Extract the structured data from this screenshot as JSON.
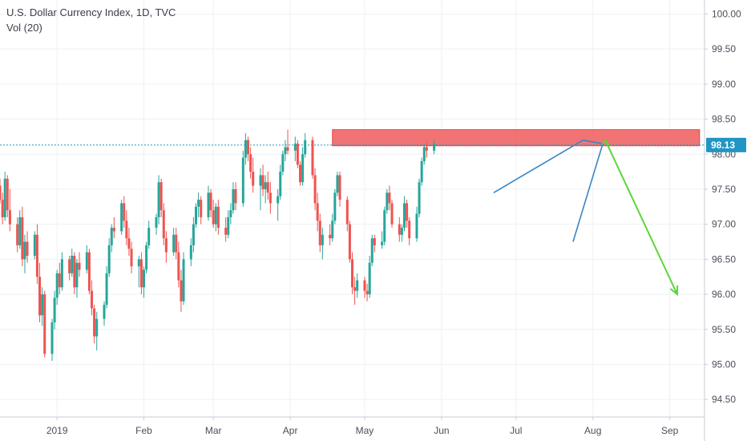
{
  "chart_data": {
    "type": "candlestick",
    "title": "U.S. Dollar Currency Index, 1D, TVC",
    "indicator": "Vol (20)",
    "last_price": "98.13",
    "ylim": [
      94.25,
      100.2
    ],
    "y_ticks": [
      "100.00",
      "99.50",
      "99.00",
      "98.50",
      "98.00",
      "97.50",
      "97.00",
      "96.50",
      "96.00",
      "95.50",
      "95.00",
      "94.50"
    ],
    "y_tick_values": [
      100.0,
      99.5,
      99.0,
      98.5,
      98.0,
      97.5,
      97.0,
      96.5,
      96.0,
      95.5,
      95.0,
      94.5
    ],
    "x_ticks": [
      "2019",
      "Feb",
      "Mar",
      "Apr",
      "May",
      "Jun",
      "Jul",
      "Aug",
      "Sep"
    ],
    "x_tick_days": [
      31,
      66,
      94,
      125,
      155,
      186,
      216,
      247,
      278
    ],
    "x_range_days": [
      8,
      292
    ],
    "resistance_zone": {
      "from_day": 142,
      "to_day": 290,
      "low": 98.12,
      "high": 98.35
    },
    "price_line": 98.13,
    "colors": {
      "up": "#26a69a",
      "down": "#ef5350",
      "zone": "#f05b5b",
      "price_label": "#2196c4",
      "trend": "#3a85c4",
      "projection": "#5cd63b",
      "grid": "#eef0f3"
    },
    "candles": [
      [
        97.55,
        97.65,
        97.3,
        97.35
      ],
      [
        97.35,
        97.45,
        97.0,
        97.1
      ],
      [
        97.1,
        97.75,
        97.05,
        97.65
      ],
      [
        97.65,
        97.7,
        97.1,
        97.2
      ],
      [
        97.2,
        97.5,
        96.9,
        97.0
      ],
      [
        97.0,
        97.1,
        96.6,
        96.7
      ],
      [
        96.7,
        97.2,
        96.65,
        97.1
      ],
      [
        97.1,
        97.25,
        96.4,
        96.5
      ],
      [
        96.5,
        96.85,
        96.3,
        96.75
      ],
      [
        96.75,
        96.9,
        96.45,
        96.55
      ],
      [
        96.55,
        96.9,
        96.5,
        96.85
      ],
      [
        96.85,
        97.0,
        96.15,
        96.25
      ],
      [
        96.25,
        96.45,
        95.6,
        95.7
      ],
      [
        95.7,
        96.1,
        95.55,
        96.0
      ],
      [
        96.0,
        96.05,
        95.1,
        95.15
      ],
      [
        95.15,
        95.65,
        95.05,
        95.6
      ],
      [
        95.6,
        96.05,
        95.5,
        95.95
      ],
      [
        95.95,
        96.35,
        95.85,
        96.3
      ],
      [
        96.3,
        96.45,
        96.0,
        96.1
      ],
      [
        96.1,
        96.6,
        96.05,
        96.5
      ],
      [
        96.5,
        96.55,
        96.2,
        96.3
      ],
      [
        96.3,
        96.65,
        96.25,
        96.55
      ],
      [
        96.55,
        96.6,
        96.0,
        96.1
      ],
      [
        96.1,
        96.5,
        95.95,
        96.45
      ],
      [
        96.45,
        96.6,
        96.25,
        96.35
      ],
      [
        96.35,
        96.7,
        96.3,
        96.6
      ],
      [
        96.6,
        96.65,
        96.0,
        96.05
      ],
      [
        96.05,
        96.2,
        95.7,
        95.8
      ],
      [
        95.8,
        95.85,
        95.3,
        95.4
      ],
      [
        95.4,
        95.75,
        95.2,
        95.65
      ],
      [
        95.65,
        95.9,
        95.55,
        95.85
      ],
      [
        95.85,
        96.4,
        95.8,
        96.3
      ],
      [
        96.3,
        96.8,
        96.25,
        96.7
      ],
      [
        96.7,
        97.0,
        96.6,
        96.95
      ],
      [
        96.95,
        97.1,
        96.8,
        96.9
      ],
      [
        96.9,
        97.35,
        96.85,
        97.3
      ],
      [
        97.3,
        97.4,
        96.95,
        97.05
      ],
      [
        97.05,
        97.2,
        96.7,
        96.8
      ],
      [
        96.8,
        96.95,
        96.55,
        96.65
      ],
      [
        96.65,
        96.75,
        96.3,
        96.4
      ],
      [
        96.4,
        96.55,
        96.1,
        96.5
      ],
      [
        96.5,
        96.6,
        96.0,
        96.1
      ],
      [
        96.1,
        96.4,
        95.95,
        96.35
      ],
      [
        96.35,
        96.75,
        96.3,
        96.7
      ],
      [
        96.7,
        97.05,
        96.65,
        96.95
      ],
      [
        96.95,
        97.15,
        96.85,
        97.1
      ],
      [
        97.1,
        97.7,
        97.0,
        97.6
      ],
      [
        97.6,
        97.65,
        97.1,
        97.2
      ],
      [
        97.2,
        97.3,
        96.7,
        96.8
      ],
      [
        96.8,
        96.9,
        96.45,
        96.6
      ],
      [
        96.6,
        96.95,
        96.55,
        96.85
      ],
      [
        96.85,
        96.95,
        96.5,
        96.6
      ],
      [
        96.6,
        96.75,
        96.1,
        96.2
      ],
      [
        96.2,
        96.35,
        95.75,
        95.9
      ],
      [
        95.9,
        96.6,
        95.85,
        96.5
      ],
      [
        96.5,
        96.8,
        96.4,
        96.7
      ],
      [
        96.7,
        97.1,
        96.6,
        97.0
      ],
      [
        97.0,
        97.3,
        96.95,
        97.25
      ],
      [
        97.25,
        97.45,
        97.1,
        97.35
      ],
      [
        97.35,
        97.4,
        97.0,
        97.1
      ],
      [
        97.1,
        97.55,
        97.05,
        97.45
      ],
      [
        97.45,
        97.5,
        97.1,
        97.2
      ],
      [
        97.2,
        97.35,
        96.95,
        97.0
      ],
      [
        97.0,
        97.3,
        96.9,
        97.25
      ],
      [
        97.25,
        97.35,
        96.85,
        96.95
      ],
      [
        96.95,
        97.1,
        96.75,
        96.85
      ],
      [
        96.85,
        97.2,
        96.8,
        97.1
      ],
      [
        97.1,
        97.3,
        97.0,
        97.2
      ],
      [
        97.2,
        97.6,
        97.15,
        97.5
      ],
      [
        97.5,
        97.6,
        97.2,
        97.3
      ],
      [
        97.3,
        98.05,
        97.25,
        97.95
      ],
      [
        97.95,
        98.3,
        97.85,
        98.2
      ],
      [
        98.2,
        98.25,
        97.9,
        98.0
      ],
      [
        98.0,
        98.1,
        97.65,
        97.75
      ],
      [
        97.75,
        97.95,
        97.45,
        97.55
      ],
      [
        97.55,
        97.8,
        97.2,
        97.7
      ],
      [
        97.7,
        97.85,
        97.4,
        97.5
      ],
      [
        97.5,
        97.7,
        97.3,
        97.6
      ],
      [
        97.6,
        97.75,
        97.35,
        97.45
      ],
      [
        97.45,
        97.6,
        97.15,
        97.3
      ],
      [
        97.3,
        97.5,
        97.05,
        97.4
      ],
      [
        97.4,
        97.85,
        97.35,
        97.75
      ],
      [
        97.75,
        98.05,
        97.7,
        98.0
      ],
      [
        98.0,
        98.2,
        97.9,
        98.1
      ],
      [
        98.1,
        98.35,
        98.0,
        98.05
      ],
      [
        98.05,
        98.25,
        97.9,
        98.15
      ],
      [
        98.15,
        98.2,
        97.8,
        97.85
      ],
      [
        97.85,
        97.9,
        97.55,
        97.6
      ],
      [
        97.6,
        98.1,
        97.55,
        98.0
      ],
      [
        98.0,
        98.3,
        97.95,
        98.2
      ],
      [
        98.2,
        98.25,
        97.65,
        97.7
      ],
      [
        97.7,
        97.8,
        97.2,
        97.3
      ],
      [
        97.3,
        97.45,
        96.9,
        97.05
      ],
      [
        97.05,
        97.15,
        96.6,
        96.7
      ],
      [
        96.7,
        96.95,
        96.5,
        96.85
      ],
      [
        96.85,
        97.0,
        96.7,
        96.8
      ],
      [
        96.8,
        97.15,
        96.75,
        97.05
      ],
      [
        97.05,
        97.5,
        97.0,
        97.45
      ],
      [
        97.45,
        97.75,
        97.4,
        97.7
      ],
      [
        97.7,
        97.75,
        97.25,
        97.35
      ],
      [
        97.35,
        97.4,
        96.9,
        97.0
      ],
      [
        97.0,
        97.05,
        96.45,
        96.5
      ],
      [
        96.5,
        96.6,
        96.0,
        96.1
      ],
      [
        96.1,
        96.25,
        95.85,
        96.05
      ],
      [
        96.05,
        96.3,
        95.95,
        96.2
      ],
      [
        96.2,
        96.25,
        95.95,
        96.05
      ],
      [
        96.05,
        96.15,
        95.9,
        96.0
      ],
      [
        96.0,
        96.55,
        95.95,
        96.45
      ],
      [
        96.45,
        96.85,
        96.4,
        96.8
      ],
      [
        96.8,
        96.85,
        96.6,
        96.7
      ],
      [
        96.7,
        96.9,
        96.65,
        96.75
      ],
      [
        96.75,
        97.25,
        96.7,
        97.2
      ],
      [
        97.2,
        97.5,
        97.15,
        97.45
      ],
      [
        97.45,
        97.55,
        97.2,
        97.3
      ],
      [
        97.3,
        97.35,
        96.95,
        97.0
      ],
      [
        97.0,
        97.1,
        96.75,
        96.85
      ],
      [
        96.85,
        97.0,
        96.75,
        96.95
      ],
      [
        96.95,
        97.4,
        96.9,
        97.3
      ],
      [
        97.3,
        97.35,
        96.95,
        97.05
      ],
      [
        97.05,
        97.1,
        96.7,
        96.8
      ],
      [
        96.8,
        97.25,
        96.75,
        97.15
      ],
      [
        97.15,
        97.65,
        97.1,
        97.6
      ],
      [
        97.6,
        97.95,
        97.55,
        97.9
      ],
      [
        97.9,
        98.15,
        97.85,
        98.1
      ],
      [
        98.1,
        98.2,
        97.95,
        98.05
      ],
      [
        98.05,
        98.2,
        98.0,
        98.15
      ]
    ],
    "annotations": {
      "wedge_upper": [
        [
          207,
          97.45
        ],
        [
          243,
          98.2
        ]
      ],
      "wedge_lower": [
        [
          239,
          96.75
        ],
        [
          251,
          98.15
        ]
      ],
      "apex_link": [
        [
          243,
          98.2
        ],
        [
          251,
          98.15
        ]
      ],
      "projection_arrow": [
        [
          252,
          98.2
        ],
        [
          281,
          96.0
        ]
      ]
    }
  }
}
